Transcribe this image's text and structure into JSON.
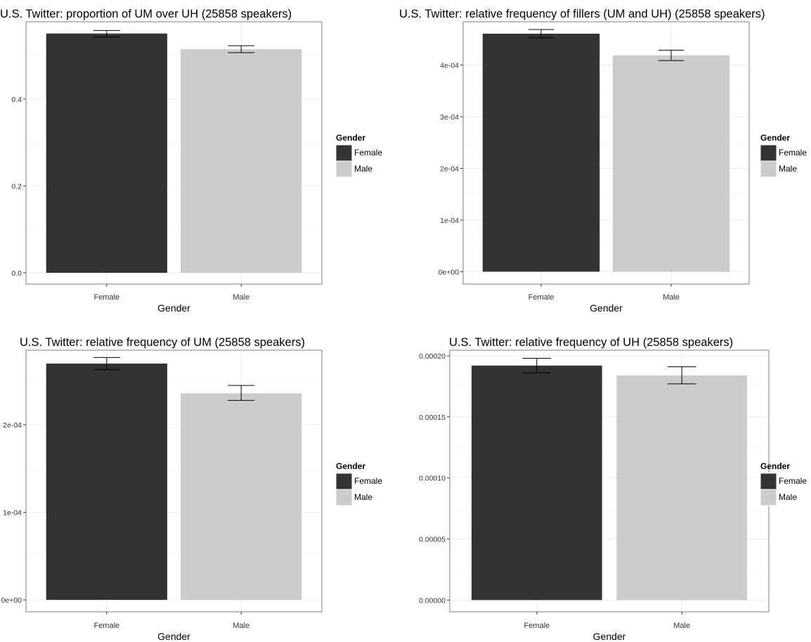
{
  "chart_data": [
    {
      "type": "bar",
      "title": "U.S. Twitter: proportion of UM over UH (25858 speakers)",
      "xlabel": "Gender",
      "ylabel": "",
      "categories": [
        "Female",
        "Male"
      ],
      "values": [
        0.551,
        0.515
      ],
      "errors": [
        [
          0.543,
          0.558
        ],
        [
          0.507,
          0.523
        ]
      ],
      "ylim": [
        -0.026,
        0.578
      ],
      "yticks": [
        0.0,
        0.2,
        0.4
      ],
      "ytick_labels": [
        "0.0",
        "0.2",
        "0.4"
      ],
      "grid": true,
      "legend": {
        "title": "Gender",
        "entries": [
          "Female",
          "Male"
        ],
        "position": "right"
      }
    },
    {
      "type": "bar",
      "title": "U.S. Twitter: relative frequency of fillers (UM and UH) (25858 speakers)",
      "xlabel": "Gender",
      "ylabel": "",
      "categories": [
        "Female",
        "Male"
      ],
      "values": [
        0.000461,
        0.000419
      ],
      "errors": [
        [
          0.000453,
          0.000469
        ],
        [
          0.000409,
          0.000429
        ]
      ],
      "ylim": [
        -2.4e-05,
        0.000484
      ],
      "yticks": [
        0,
        0.0001,
        0.0002,
        0.0003,
        0.0004
      ],
      "ytick_labels": [
        "0e+00",
        "1e-04",
        "2e-04",
        "3e-04",
        "4e-04"
      ],
      "grid": true,
      "legend": {
        "title": "Gender",
        "entries": [
          "Female",
          "Male"
        ],
        "position": "right"
      }
    },
    {
      "type": "bar",
      "title": "U.S. Twitter: relative frequency of UM (25858 speakers)",
      "xlabel": "Gender",
      "ylabel": "",
      "categories": [
        "Female",
        "Male"
      ],
      "values": [
        0.00027,
        0.000236
      ],
      "errors": [
        [
          0.000263,
          0.000277
        ],
        [
          0.000228,
          0.000245
        ]
      ],
      "ylim": [
        -1.36e-05,
        0.0002853
      ],
      "yticks": [
        0,
        0.0001,
        0.0002
      ],
      "ytick_labels": [
        "0e+00",
        "1e-04",
        "2e-04"
      ],
      "grid": true,
      "legend": {
        "title": "Gender",
        "entries": [
          "Female",
          "Male"
        ],
        "position": "right"
      }
    },
    {
      "type": "bar",
      "title": "U.S. Twitter: relative frequency of UH (25858 speakers)",
      "xlabel": "Gender",
      "ylabel": "",
      "categories": [
        "Female",
        "Male"
      ],
      "values": [
        0.000192,
        0.000184
      ],
      "errors": [
        [
          0.000186,
          0.000198
        ],
        [
          0.000177,
          0.000191
        ]
      ],
      "ylim": [
        -9.6e-06,
        0.0002046
      ],
      "yticks": [
        0,
        5e-05,
        0.0001,
        0.00015,
        0.0002
      ],
      "ytick_labels": [
        "0.00000",
        "0.00005",
        "0.00010",
        "0.00015",
        "0.00020"
      ],
      "grid": true,
      "legend": {
        "title": "Gender",
        "entries": [
          "Female",
          "Male"
        ],
        "position": "right"
      }
    }
  ],
  "colors": {
    "Female": "#333333",
    "Male": "#cccccc",
    "grid": "#ebebeb",
    "frame": "#7f7f7f",
    "text": "#000000",
    "tick_text": "#333333"
  }
}
